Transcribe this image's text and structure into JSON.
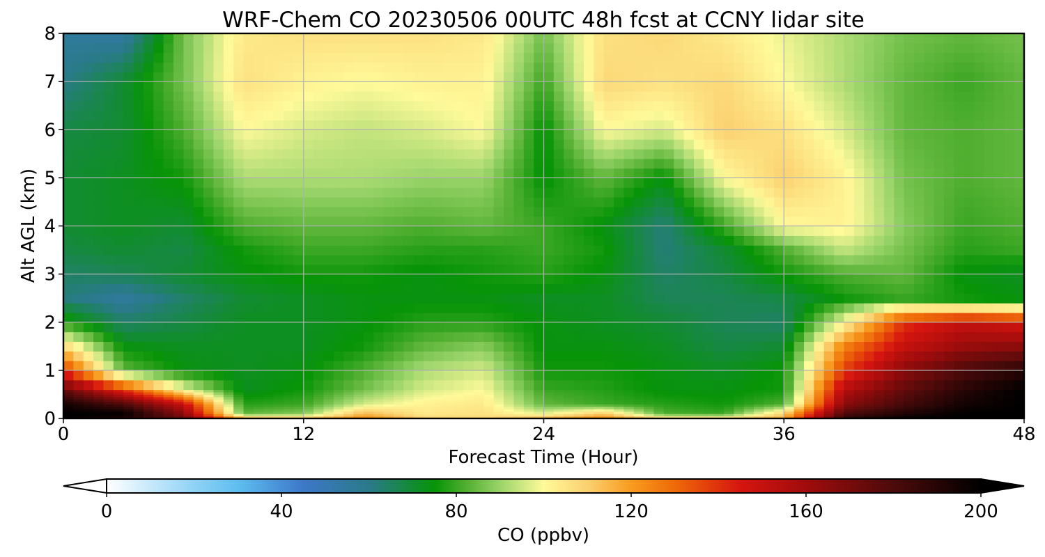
{
  "chart_data": {
    "type": "heatmap",
    "title": "WRF-Chem CO  20230506 00UTC 48h fcst at CCNY lidar site",
    "xlabel": "Forecast Time (Hour)",
    "ylabel": "Alt AGL (km)",
    "xlim": [
      0,
      48
    ],
    "ylim": [
      0,
      8
    ],
    "xticks": [
      0,
      12,
      24,
      36,
      48
    ],
    "yticks": [
      0,
      1,
      2,
      3,
      4,
      5,
      6,
      7,
      8
    ],
    "grid": true,
    "colorbar": {
      "label": "CO  (ppbv)",
      "range": [
        0,
        200
      ],
      "ticks": [
        0,
        40,
        80,
        120,
        160,
        200
      ],
      "extend": "both",
      "placement": "bottom",
      "stops": [
        {
          "v": 0,
          "c": "#ffffff"
        },
        {
          "v": 20,
          "c": "#8fd2f5"
        },
        {
          "v": 30,
          "c": "#5fbef0"
        },
        {
          "v": 45,
          "c": "#3c78c8"
        },
        {
          "v": 60,
          "c": "#2a7a8a"
        },
        {
          "v": 75,
          "c": "#079407"
        },
        {
          "v": 82,
          "c": "#4fae2f"
        },
        {
          "v": 90,
          "c": "#9ad46a"
        },
        {
          "v": 100,
          "c": "#fffa9a"
        },
        {
          "v": 110,
          "c": "#fbd070"
        },
        {
          "v": 120,
          "c": "#f79b1e"
        },
        {
          "v": 130,
          "c": "#ee6a08"
        },
        {
          "v": 145,
          "c": "#d6150f"
        },
        {
          "v": 160,
          "c": "#a00c0c"
        },
        {
          "v": 180,
          "c": "#4d0a0a"
        },
        {
          "v": 200,
          "c": "#000000"
        }
      ]
    },
    "hours": [
      0,
      3,
      6,
      9,
      12,
      15,
      18,
      21,
      24,
      27,
      30,
      33,
      36,
      39,
      42,
      45,
      48
    ],
    "altitudes_km": [
      0,
      0.1,
      0.3,
      0.6,
      1.0,
      1.5,
      2.0,
      2.5,
      3.0,
      3.5,
      4.0,
      5.0,
      6.0,
      7.0,
      8.0
    ],
    "values_ppbv": [
      [
        200,
        190,
        175,
        120,
        115,
        125,
        110,
        108,
        118,
        125,
        112,
        112,
        118,
        190,
        200,
        200,
        200
      ],
      [
        200,
        200,
        165,
        84,
        88,
        115,
        104,
        106,
        98,
        112,
        82,
        80,
        110,
        180,
        192,
        200,
        200
      ],
      [
        195,
        180,
        150,
        78,
        80,
        96,
        102,
        104,
        84,
        80,
        78,
        76,
        82,
        165,
        182,
        195,
        200
      ],
      [
        175,
        140,
        100,
        72,
        76,
        86,
        96,
        100,
        80,
        78,
        74,
        74,
        76,
        155,
        175,
        190,
        200
      ],
      [
        140,
        84,
        74,
        72,
        74,
        82,
        92,
        96,
        76,
        76,
        74,
        72,
        76,
        138,
        165,
        180,
        190
      ],
      [
        108,
        74,
        72,
        72,
        72,
        76,
        84,
        88,
        74,
        74,
        72,
        68,
        70,
        125,
        150,
        162,
        165
      ],
      [
        78,
        64,
        68,
        72,
        72,
        74,
        78,
        78,
        74,
        72,
        70,
        66,
        64,
        100,
        140,
        150,
        145
      ],
      [
        62,
        56,
        64,
        70,
        72,
        74,
        74,
        74,
        72,
        72,
        66,
        66,
        68,
        76,
        80,
        76,
        74
      ],
      [
        64,
        66,
        70,
        74,
        76,
        76,
        74,
        76,
        78,
        74,
        64,
        68,
        76,
        82,
        84,
        74,
        72
      ],
      [
        68,
        70,
        68,
        76,
        80,
        80,
        78,
        78,
        80,
        76,
        62,
        70,
        82,
        94,
        86,
        78,
        80
      ],
      [
        70,
        72,
        70,
        82,
        84,
        84,
        82,
        84,
        80,
        74,
        62,
        80,
        100,
        102,
        88,
        80,
        82
      ],
      [
        70,
        72,
        76,
        92,
        92,
        92,
        90,
        90,
        74,
        84,
        74,
        100,
        110,
        102,
        86,
        82,
        84
      ],
      [
        68,
        70,
        82,
        100,
        96,
        94,
        96,
        100,
        74,
        100,
        96,
        110,
        106,
        96,
        84,
        82,
        84
      ],
      [
        60,
        70,
        86,
        106,
        102,
        100,
        102,
        102,
        80,
        108,
        106,
        108,
        100,
        92,
        84,
        80,
        84
      ],
      [
        56,
        54,
        86,
        104,
        106,
        106,
        106,
        104,
        86,
        106,
        108,
        104,
        98,
        92,
        86,
        84,
        86
      ]
    ]
  }
}
